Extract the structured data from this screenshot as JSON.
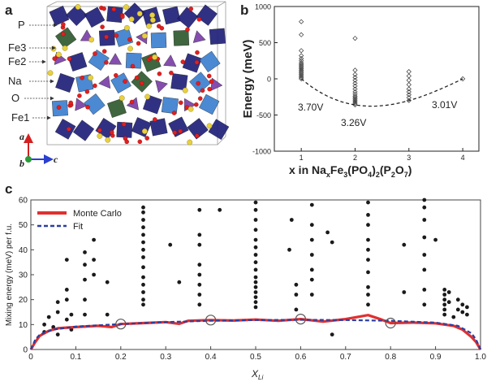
{
  "panels": {
    "a": {
      "letter": "a",
      "legend_labels": [
        {
          "text": "P",
          "color": "#5b2a8c"
        },
        {
          "text": "Fe3",
          "color": "#1f4f1f"
        },
        {
          "text": "Fe2",
          "color": "#1e6ec8"
        },
        {
          "text": "Na",
          "color": "#b8860b"
        },
        {
          "text": "O",
          "color": "#d42020"
        },
        {
          "text": "Fe1",
          "color": "#1a1a6e"
        }
      ],
      "axes": {
        "a": "a",
        "b": "b",
        "c": "c"
      },
      "colors": {
        "P": "#7b3fa8",
        "Fe3": "#2f5a2f",
        "Fe2": "#3c7fd0",
        "Fe1": "#20207a",
        "Na": "#e8d040",
        "O": "#e02020"
      }
    },
    "b": {
      "letter": "b",
      "chart_type": "scatter",
      "ylabel": "Energy (meV)",
      "xlabel_parts": [
        "x in Na",
        "x",
        "Fe",
        "3",
        "(PO",
        "4",
        ")",
        "2",
        "(P",
        "2",
        "O",
        "7",
        ")"
      ],
      "xticks": [
        "1",
        "2",
        "3",
        "4"
      ],
      "yticks": [
        "-1000",
        "-500",
        "0",
        "500",
        "1000"
      ],
      "voltage_labels": [
        "3.70V",
        "3.26V",
        "3.01V"
      ]
    },
    "c": {
      "letter": "c",
      "chart_type": "scatter+line",
      "ylabel": "Mixing energy (meV) per f.u.",
      "xlabel_main": "X",
      "xlabel_sub": "Li",
      "xticks": [
        "0",
        "0.1",
        "0.2",
        "0.3",
        "0.4",
        "0.5",
        "0.6",
        "0.7",
        "0.8",
        "0.9",
        "1.0"
      ],
      "yticks": [
        "0",
        "10",
        "20",
        "30",
        "40",
        "50",
        "60"
      ],
      "legend": [
        {
          "name": "Monte Carlo",
          "color": "#e03030"
        },
        {
          "name": "Fit",
          "color": "#2b3fa0"
        }
      ]
    }
  },
  "chart_data": [
    {
      "type": "scatter",
      "panel": "b",
      "xlabel": "x in NaxFe3(PO4)2(P2O7)",
      "ylabel": "Energy (meV)",
      "xlim": [
        0.5,
        4.3
      ],
      "ylim": [
        -1000,
        1000
      ],
      "series": [
        {
          "marker": "diamond",
          "points": [
            [
              1,
              790
            ],
            [
              1,
              610
            ],
            [
              1,
              390
            ],
            [
              1,
              320
            ],
            [
              1,
              280
            ],
            [
              1,
              250
            ],
            [
              1,
              220
            ],
            [
              1,
              200
            ],
            [
              1,
              180
            ],
            [
              1,
              160
            ],
            [
              1,
              140
            ],
            [
              1,
              120
            ],
            [
              1,
              100
            ],
            [
              1,
              80
            ],
            [
              1,
              60
            ],
            [
              1,
              40
            ],
            [
              1,
              20
            ],
            [
              1,
              0
            ],
            [
              2,
              560
            ],
            [
              2,
              120
            ],
            [
              2,
              60
            ],
            [
              2,
              20
            ],
            [
              2,
              -20
            ],
            [
              2,
              -60
            ],
            [
              2,
              -100
            ],
            [
              2,
              -140
            ],
            [
              2,
              -180
            ],
            [
              2,
              -210
            ],
            [
              2,
              -240
            ],
            [
              2,
              -260
            ],
            [
              2,
              -280
            ],
            [
              2,
              -300
            ],
            [
              2,
              -320
            ],
            [
              2,
              -340
            ],
            [
              2,
              -360
            ],
            [
              3,
              100
            ],
            [
              3,
              40
            ],
            [
              3,
              -20
            ],
            [
              3,
              -80
            ],
            [
              3,
              -140
            ],
            [
              3,
              -180
            ],
            [
              3,
              -220
            ],
            [
              3,
              -260
            ],
            [
              3,
              -300
            ],
            [
              4,
              0
            ]
          ]
        }
      ],
      "hull": {
        "style": "dashed",
        "points": [
          [
            1,
            0
          ],
          [
            2,
            -360
          ],
          [
            3,
            -300
          ],
          [
            4,
            0
          ]
        ]
      },
      "annotations": [
        "3.70V",
        "3.26V",
        "3.01V"
      ]
    },
    {
      "type": "scatter",
      "panel": "c",
      "xlabel": "XLi",
      "ylabel": "Mixing energy (meV) per f.u.",
      "xlim": [
        0,
        1
      ],
      "ylim": [
        0,
        60
      ],
      "series": [
        {
          "name": "",
          "points": [
            [
              0.03,
              10
            ],
            [
              0.03,
              7
            ],
            [
              0.04,
              13
            ],
            [
              0.05,
              9
            ],
            [
              0.06,
              15
            ],
            [
              0.06,
              19
            ],
            [
              0.06,
              6
            ],
            [
              0.08,
              36
            ],
            [
              0.08,
              24
            ],
            [
              0.08,
              20
            ],
            [
              0.08,
              12
            ],
            [
              0.09,
              14
            ],
            [
              0.09,
              8
            ],
            [
              0.12,
              39
            ],
            [
              0.12,
              34
            ],
            [
              0.12,
              28
            ],
            [
              0.12,
              20
            ],
            [
              0.12,
              14
            ],
            [
              0.14,
              44
            ],
            [
              0.14,
              36
            ],
            [
              0.14,
              30
            ],
            [
              0.17,
              27
            ],
            [
              0.17,
              14
            ],
            [
              0.25,
              57
            ],
            [
              0.25,
              55
            ],
            [
              0.25,
              52
            ],
            [
              0.25,
              49
            ],
            [
              0.25,
              46
            ],
            [
              0.25,
              43
            ],
            [
              0.25,
              40
            ],
            [
              0.25,
              37
            ],
            [
              0.25,
              33
            ],
            [
              0.25,
              29
            ],
            [
              0.25,
              26
            ],
            [
              0.25,
              23
            ],
            [
              0.25,
              20
            ],
            [
              0.25,
              18
            ],
            [
              0.31,
              42
            ],
            [
              0.33,
              27
            ],
            [
              0.375,
              56
            ],
            [
              0.375,
              46
            ],
            [
              0.375,
              42
            ],
            [
              0.375,
              34
            ],
            [
              0.375,
              30
            ],
            [
              0.375,
              26
            ],
            [
              0.375,
              22
            ],
            [
              0.375,
              18
            ],
            [
              0.42,
              56
            ],
            [
              0.5,
              59
            ],
            [
              0.5,
              56
            ],
            [
              0.5,
              52
            ],
            [
              0.5,
              48
            ],
            [
              0.5,
              44
            ],
            [
              0.5,
              41
            ],
            [
              0.5,
              38
            ],
            [
              0.5,
              35
            ],
            [
              0.5,
              32
            ],
            [
              0.5,
              29
            ],
            [
              0.5,
              27
            ],
            [
              0.5,
              25
            ],
            [
              0.5,
              23
            ],
            [
              0.5,
              21
            ],
            [
              0.5,
              19
            ],
            [
              0.5,
              17
            ],
            [
              0.575,
              40
            ],
            [
              0.58,
              52
            ],
            [
              0.59,
              26
            ],
            [
              0.59,
              22
            ],
            [
              0.59,
              16
            ],
            [
              0.625,
              58
            ],
            [
              0.625,
              50
            ],
            [
              0.625,
              44
            ],
            [
              0.625,
              38
            ],
            [
              0.625,
              32
            ],
            [
              0.625,
              28
            ],
            [
              0.625,
              22
            ],
            [
              0.66,
              47
            ],
            [
              0.67,
              43
            ],
            [
              0.67,
              6
            ],
            [
              0.75,
              59
            ],
            [
              0.75,
              54
            ],
            [
              0.75,
              50
            ],
            [
              0.75,
              44
            ],
            [
              0.75,
              40
            ],
            [
              0.75,
              36
            ],
            [
              0.75,
              31
            ],
            [
              0.75,
              25
            ],
            [
              0.75,
              22
            ],
            [
              0.75,
              18
            ],
            [
              0.83,
              23
            ],
            [
              0.83,
              42
            ],
            [
              0.875,
              60
            ],
            [
              0.875,
              57
            ],
            [
              0.875,
              52
            ],
            [
              0.875,
              45
            ],
            [
              0.875,
              38
            ],
            [
              0.875,
              32
            ],
            [
              0.875,
              24
            ],
            [
              0.875,
              18
            ],
            [
              0.9,
              44
            ],
            [
              0.92,
              24
            ],
            [
              0.92,
              22
            ],
            [
              0.92,
              20
            ],
            [
              0.92,
              18
            ],
            [
              0.92,
              16
            ],
            [
              0.92,
              14
            ],
            [
              0.93,
              23
            ],
            [
              0.93,
              19
            ],
            [
              0.94,
              13
            ],
            [
              0.95,
              20
            ],
            [
              0.95,
              16
            ],
            [
              0.96,
              18
            ],
            [
              0.96,
              15
            ],
            [
              0.97,
              17
            ],
            [
              0.97,
              14
            ]
          ]
        },
        {
          "name": "Monte Carlo",
          "points": [
            [
              0,
              0
            ],
            [
              0.01,
              3
            ],
            [
              0.02,
              5.5
            ],
            [
              0.04,
              7.5
            ],
            [
              0.06,
              8.5
            ],
            [
              0.1,
              9
            ],
            [
              0.15,
              9.5
            ],
            [
              0.18,
              9
            ],
            [
              0.2,
              10.2
            ],
            [
              0.25,
              10.6
            ],
            [
              0.3,
              11
            ],
            [
              0.33,
              10.3
            ],
            [
              0.35,
              11.5
            ],
            [
              0.4,
              11.8
            ],
            [
              0.45,
              11.6
            ],
            [
              0.5,
              12
            ],
            [
              0.55,
              11.5
            ],
            [
              0.6,
              12.2
            ],
            [
              0.65,
              11.2
            ],
            [
              0.7,
              12.2
            ],
            [
              0.75,
              13.8
            ],
            [
              0.78,
              12
            ],
            [
              0.8,
              10.6
            ],
            [
              0.85,
              10.8
            ],
            [
              0.9,
              10.5
            ],
            [
              0.94,
              9.5
            ],
            [
              0.96,
              8
            ],
            [
              0.98,
              5
            ],
            [
              0.99,
              3
            ],
            [
              1,
              0
            ]
          ]
        },
        {
          "name": "Fit",
          "points": [
            [
              0,
              0
            ],
            [
              0.01,
              4
            ],
            [
              0.02,
              6
            ],
            [
              0.05,
              8
            ],
            [
              0.1,
              9.2
            ],
            [
              0.2,
              10.2
            ],
            [
              0.3,
              11
            ],
            [
              0.4,
              11.5
            ],
            [
              0.5,
              11.8
            ],
            [
              0.6,
              11.9
            ],
            [
              0.7,
              11.8
            ],
            [
              0.8,
              11.5
            ],
            [
              0.9,
              10.8
            ],
            [
              0.95,
              9.5
            ],
            [
              0.98,
              6.5
            ],
            [
              0.99,
              4
            ],
            [
              1,
              0
            ]
          ]
        }
      ],
      "circled_points": [
        [
          0.2,
          10.2
        ],
        [
          0.4,
          11.8
        ],
        [
          0.6,
          12.2
        ],
        [
          0.8,
          10.6
        ]
      ]
    }
  ]
}
